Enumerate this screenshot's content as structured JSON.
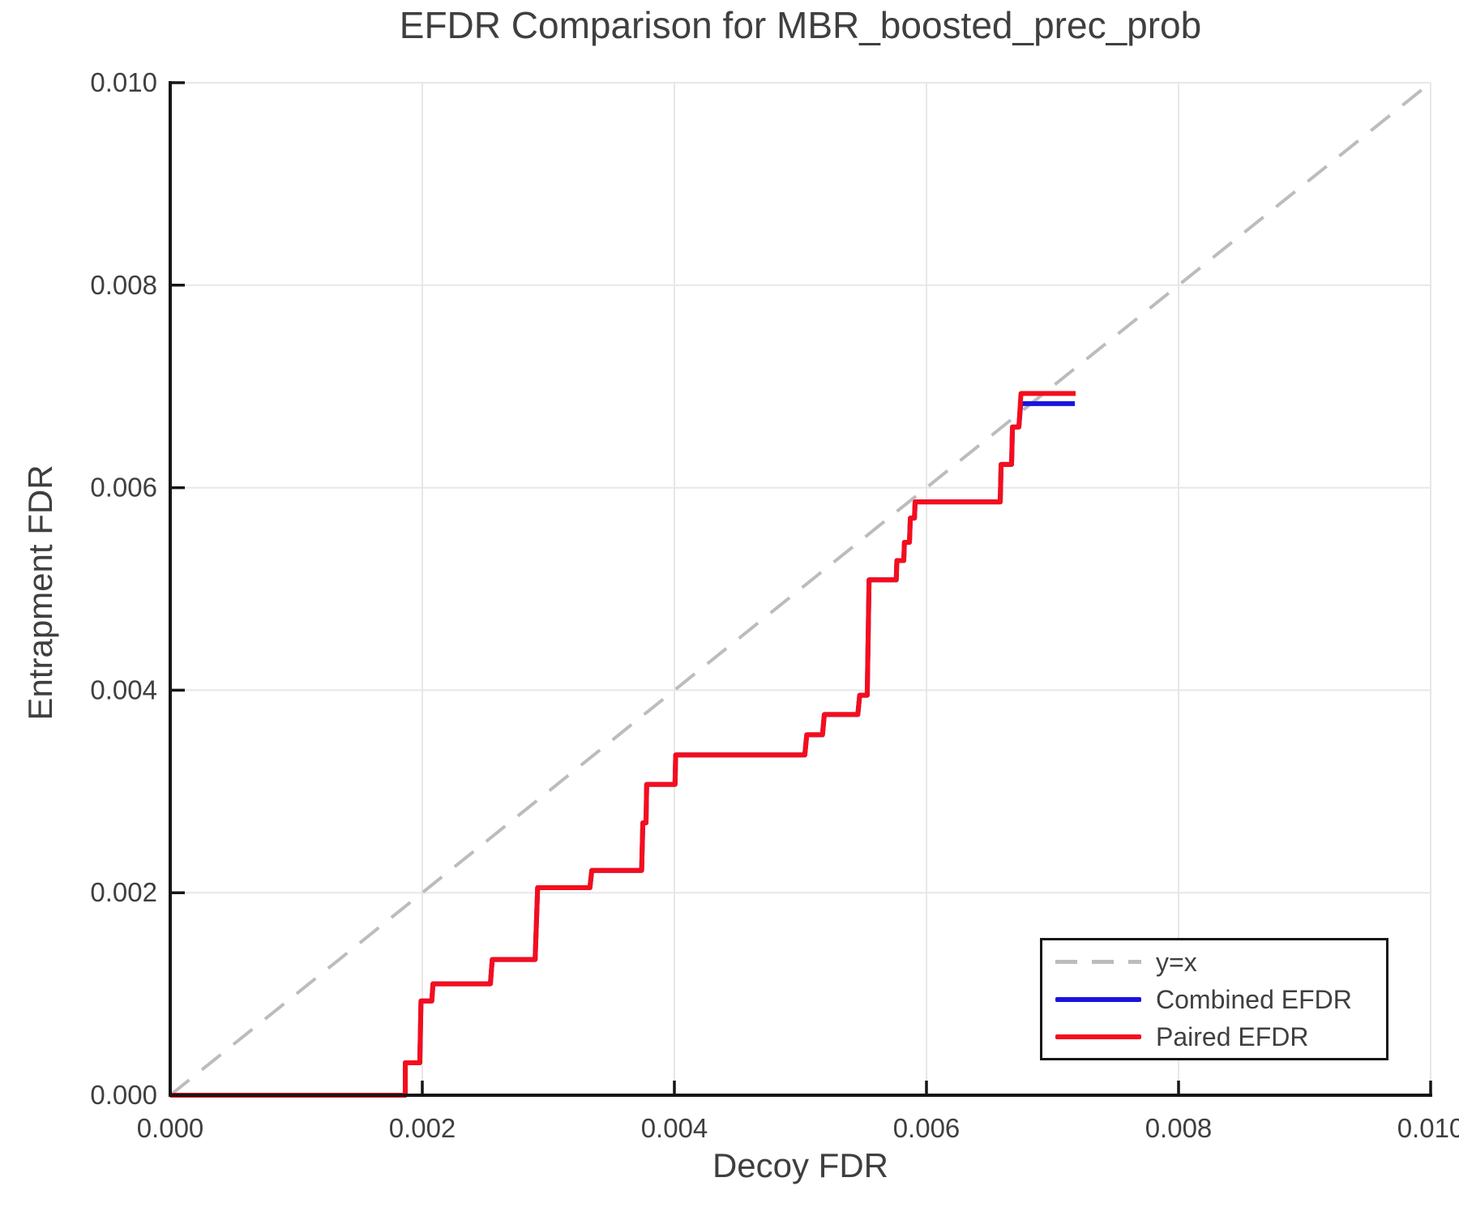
{
  "title": "EFDR Comparison for MBR_boosted_prec_prob",
  "axes": {
    "xlabel": "Decoy FDR",
    "ylabel": "Entrapment FDR"
  },
  "legend": {
    "items": [
      {
        "label": "y=x",
        "style": "dashed",
        "color": "#bcbcbc"
      },
      {
        "label": "Combined EFDR",
        "style": "solid-blue",
        "color": "#1a13e0"
      },
      {
        "label": "Paired EFDR",
        "style": "solid-red",
        "color": "#f50d1c"
      }
    ]
  },
  "chart_data": {
    "type": "line",
    "title": "EFDR Comparison for MBR_boosted_prec_prob",
    "xlabel": "Decoy FDR",
    "ylabel": "Entrapment FDR",
    "xlim": [
      0.0,
      0.01
    ],
    "ylim": [
      0.0,
      0.01
    ],
    "grid": true,
    "grid_color": "#e7e7e7",
    "spine_color": "#161616",
    "tick_label_color": "#3f3f3f",
    "legend_position": "lower right",
    "xticks": {
      "values": [
        0.0,
        0.002,
        0.004,
        0.006,
        0.008,
        0.01
      ],
      "labels": [
        "0.000",
        "0.002",
        "0.004",
        "0.006",
        "0.008",
        "0.010"
      ]
    },
    "yticks": {
      "values": [
        0.0,
        0.002,
        0.004,
        0.006,
        0.008,
        0.01
      ],
      "labels": [
        "0.000",
        "0.002",
        "0.004",
        "0.006",
        "0.008",
        "0.010"
      ]
    },
    "series": [
      {
        "name": "y=x",
        "color": "#bcbcbc",
        "style": "dashed",
        "width": 4,
        "points": [
          [
            0.0,
            0.0
          ],
          [
            0.01,
            0.01
          ]
        ]
      },
      {
        "name": "Combined EFDR",
        "color": "#1a13e0",
        "style": "solid",
        "width": 6,
        "points": [
          [
            0.0,
            0.0
          ],
          [
            0.001865,
            0.0
          ],
          [
            0.001865,
            0.00032
          ],
          [
            0.00198,
            0.00032
          ],
          [
            0.00199,
            0.00093
          ],
          [
            0.002075,
            0.00093
          ],
          [
            0.002085,
            0.0011
          ],
          [
            0.00254,
            0.0011
          ],
          [
            0.002555,
            0.00134
          ],
          [
            0.002895,
            0.00134
          ],
          [
            0.002915,
            0.00205
          ],
          [
            0.00333,
            0.00205
          ],
          [
            0.003345,
            0.00222
          ],
          [
            0.00374,
            0.00222
          ],
          [
            0.00375,
            0.00269
          ],
          [
            0.003775,
            0.00269
          ],
          [
            0.00378,
            0.00307
          ],
          [
            0.004005,
            0.00307
          ],
          [
            0.00401,
            0.00336
          ],
          [
            0.005035,
            0.00336
          ],
          [
            0.00505,
            0.00356
          ],
          [
            0.005175,
            0.00356
          ],
          [
            0.00519,
            0.00376
          ],
          [
            0.005455,
            0.00376
          ],
          [
            0.00547,
            0.00395
          ],
          [
            0.00553,
            0.00395
          ],
          [
            0.005545,
            0.00509
          ],
          [
            0.00576,
            0.00509
          ],
          [
            0.005765,
            0.00528
          ],
          [
            0.00582,
            0.00528
          ],
          [
            0.005825,
            0.00546
          ],
          [
            0.005865,
            0.00546
          ],
          [
            0.005872,
            0.0057
          ],
          [
            0.005905,
            0.0057
          ],
          [
            0.00591,
            0.00586
          ],
          [
            0.006585,
            0.00586
          ],
          [
            0.006592,
            0.00623
          ],
          [
            0.006675,
            0.00623
          ],
          [
            0.006682,
            0.0066
          ],
          [
            0.006733,
            0.0066
          ],
          [
            0.006748,
            0.00683
          ],
          [
            0.007177,
            0.00683
          ]
        ]
      },
      {
        "name": "Paired EFDR",
        "color": "#f50d1c",
        "style": "solid",
        "width": 6,
        "points": [
          [
            0.0,
            0.0
          ],
          [
            0.001865,
            0.0
          ],
          [
            0.001865,
            0.00032
          ],
          [
            0.00198,
            0.00032
          ],
          [
            0.00199,
            0.00093
          ],
          [
            0.002075,
            0.00093
          ],
          [
            0.002085,
            0.0011
          ],
          [
            0.00254,
            0.0011
          ],
          [
            0.002555,
            0.00134
          ],
          [
            0.002895,
            0.00134
          ],
          [
            0.002915,
            0.00205
          ],
          [
            0.00333,
            0.00205
          ],
          [
            0.003345,
            0.00222
          ],
          [
            0.00374,
            0.00222
          ],
          [
            0.00375,
            0.00269
          ],
          [
            0.003775,
            0.00269
          ],
          [
            0.00378,
            0.00307
          ],
          [
            0.004005,
            0.00307
          ],
          [
            0.00401,
            0.00336
          ],
          [
            0.005035,
            0.00336
          ],
          [
            0.00505,
            0.00356
          ],
          [
            0.005175,
            0.00356
          ],
          [
            0.00519,
            0.00376
          ],
          [
            0.005455,
            0.00376
          ],
          [
            0.00547,
            0.00395
          ],
          [
            0.00553,
            0.00395
          ],
          [
            0.005545,
            0.00509
          ],
          [
            0.00576,
            0.00509
          ],
          [
            0.005765,
            0.00528
          ],
          [
            0.00582,
            0.00528
          ],
          [
            0.005825,
            0.00546
          ],
          [
            0.005865,
            0.00546
          ],
          [
            0.005872,
            0.0057
          ],
          [
            0.005905,
            0.0057
          ],
          [
            0.00591,
            0.00586
          ],
          [
            0.006585,
            0.00586
          ],
          [
            0.006592,
            0.00623
          ],
          [
            0.006675,
            0.00623
          ],
          [
            0.006682,
            0.0066
          ],
          [
            0.006733,
            0.0066
          ],
          [
            0.00675,
            0.00693
          ],
          [
            0.007183,
            0.00693
          ]
        ]
      }
    ]
  }
}
